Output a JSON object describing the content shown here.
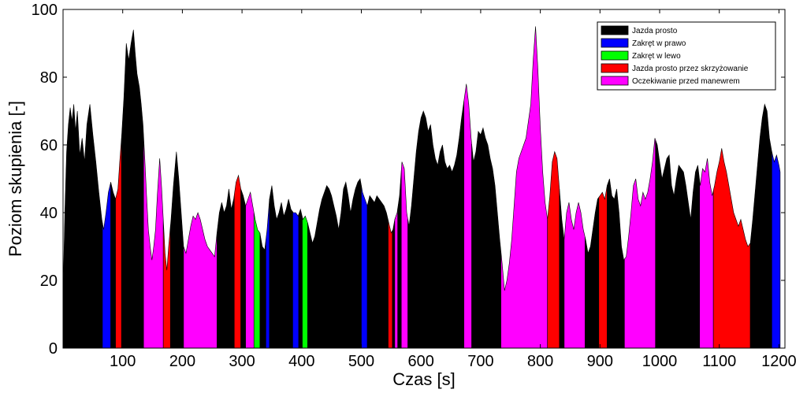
{
  "chart_data": {
    "type": "area",
    "xlabel": "Czas [s]",
    "ylabel": "Poziom skupienia [-]",
    "xlim": [
      0,
      1210
    ],
    "ylim": [
      0,
      100
    ],
    "xticks": [
      100,
      200,
      300,
      400,
      500,
      600,
      700,
      800,
      900,
      1000,
      1100,
      1200
    ],
    "yticks": [
      0,
      20,
      40,
      60,
      80,
      100
    ],
    "grid": false,
    "legend_position": "top-right",
    "legend": [
      {
        "name": "Jazda prosto",
        "color": "#000000"
      },
      {
        "name": "Zakręt w prawo",
        "color": "#0000ff"
      },
      {
        "name": "Zakręt w lewo",
        "color": "#00ff00"
      },
      {
        "name": "Jazda prosto przez skrzyżowanie",
        "color": "#ff0000"
      },
      {
        "name": "Oczekiwanie przed manewrem",
        "color": "#ff00ff"
      }
    ],
    "signal": [
      [
        0,
        15
      ],
      [
        3,
        40
      ],
      [
        6,
        58
      ],
      [
        9,
        66
      ],
      [
        12,
        71
      ],
      [
        15,
        67
      ],
      [
        18,
        72
      ],
      [
        21,
        64
      ],
      [
        24,
        70
      ],
      [
        28,
        57
      ],
      [
        32,
        62
      ],
      [
        36,
        55
      ],
      [
        40,
        66
      ],
      [
        45,
        72
      ],
      [
        50,
        63
      ],
      [
        55,
        55
      ],
      [
        60,
        46
      ],
      [
        65,
        38
      ],
      [
        68,
        35
      ],
      [
        72,
        40
      ],
      [
        76,
        46
      ],
      [
        80,
        49
      ],
      [
        84,
        46
      ],
      [
        88,
        44
      ],
      [
        92,
        47
      ],
      [
        95,
        55
      ],
      [
        98,
        62
      ],
      [
        102,
        74
      ],
      [
        106,
        90
      ],
      [
        110,
        85
      ],
      [
        114,
        90
      ],
      [
        118,
        94
      ],
      [
        121,
        87
      ],
      [
        124,
        81
      ],
      [
        128,
        77
      ],
      [
        131,
        72
      ],
      [
        134,
        66
      ],
      [
        137,
        56
      ],
      [
        140,
        45
      ],
      [
        143,
        35
      ],
      [
        146,
        30
      ],
      [
        149,
        26
      ],
      [
        152,
        30
      ],
      [
        155,
        35
      ],
      [
        158,
        45
      ],
      [
        162,
        56
      ],
      [
        165,
        48
      ],
      [
        168,
        38
      ],
      [
        171,
        28
      ],
      [
        174,
        23
      ],
      [
        177,
        30
      ],
      [
        181,
        38
      ],
      [
        185,
        48
      ],
      [
        190,
        58
      ],
      [
        194,
        50
      ],
      [
        198,
        40
      ],
      [
        202,
        30
      ],
      [
        206,
        28
      ],
      [
        210,
        32
      ],
      [
        214,
        36
      ],
      [
        218,
        39
      ],
      [
        222,
        38
      ],
      [
        226,
        40
      ],
      [
        230,
        38
      ],
      [
        234,
        35
      ],
      [
        238,
        32
      ],
      [
        242,
        30
      ],
      [
        246,
        29
      ],
      [
        250,
        28
      ],
      [
        254,
        27
      ],
      [
        258,
        34
      ],
      [
        262,
        40
      ],
      [
        266,
        43
      ],
      [
        270,
        40
      ],
      [
        274,
        42
      ],
      [
        278,
        47
      ],
      [
        282,
        41
      ],
      [
        286,
        44
      ],
      [
        290,
        49
      ],
      [
        294,
        51
      ],
      [
        298,
        47
      ],
      [
        302,
        45
      ],
      [
        306,
        42
      ],
      [
        310,
        44
      ],
      [
        314,
        46
      ],
      [
        318,
        42
      ],
      [
        322,
        38
      ],
      [
        326,
        35
      ],
      [
        330,
        34
      ],
      [
        334,
        30
      ],
      [
        338,
        29
      ],
      [
        342,
        35
      ],
      [
        346,
        44
      ],
      [
        350,
        48
      ],
      [
        354,
        42
      ],
      [
        358,
        38
      ],
      [
        362,
        40
      ],
      [
        366,
        43
      ],
      [
        370,
        39
      ],
      [
        374,
        41
      ],
      [
        378,
        44
      ],
      [
        382,
        41
      ],
      [
        386,
        40
      ],
      [
        390,
        40
      ],
      [
        394,
        39
      ],
      [
        398,
        41
      ],
      [
        402,
        38
      ],
      [
        406,
        39
      ],
      [
        410,
        37
      ],
      [
        414,
        34
      ],
      [
        418,
        31
      ],
      [
        422,
        33
      ],
      [
        426,
        37
      ],
      [
        430,
        41
      ],
      [
        434,
        44
      ],
      [
        438,
        46
      ],
      [
        442,
        48
      ],
      [
        446,
        47
      ],
      [
        450,
        45
      ],
      [
        454,
        42
      ],
      [
        458,
        39
      ],
      [
        462,
        35
      ],
      [
        466,
        40
      ],
      [
        470,
        47
      ],
      [
        474,
        49
      ],
      [
        478,
        45
      ],
      [
        482,
        40
      ],
      [
        486,
        44
      ],
      [
        490,
        47
      ],
      [
        494,
        49
      ],
      [
        498,
        50
      ],
      [
        502,
        46
      ],
      [
        506,
        44
      ],
      [
        510,
        42
      ],
      [
        514,
        45
      ],
      [
        518,
        44
      ],
      [
        522,
        43
      ],
      [
        526,
        45
      ],
      [
        530,
        44
      ],
      [
        534,
        43
      ],
      [
        538,
        42
      ],
      [
        542,
        40
      ],
      [
        546,
        37
      ],
      [
        550,
        34
      ],
      [
        553,
        35
      ],
      [
        556,
        38
      ],
      [
        560,
        40
      ],
      [
        564,
        45
      ],
      [
        568,
        55
      ],
      [
        572,
        53
      ],
      [
        576,
        40
      ],
      [
        580,
        36
      ],
      [
        584,
        42
      ],
      [
        588,
        50
      ],
      [
        592,
        58
      ],
      [
        596,
        64
      ],
      [
        600,
        68
      ],
      [
        604,
        70
      ],
      [
        608,
        68
      ],
      [
        612,
        64
      ],
      [
        616,
        66
      ],
      [
        620,
        60
      ],
      [
        624,
        56
      ],
      [
        628,
        54
      ],
      [
        632,
        58
      ],
      [
        636,
        60
      ],
      [
        640,
        55
      ],
      [
        644,
        53
      ],
      [
        648,
        54
      ],
      [
        652,
        52
      ],
      [
        656,
        54
      ],
      [
        660,
        57
      ],
      [
        664,
        62
      ],
      [
        668,
        68
      ],
      [
        672,
        73
      ],
      [
        676,
        78
      ],
      [
        680,
        72
      ],
      [
        684,
        62
      ],
      [
        688,
        55
      ],
      [
        692,
        58
      ],
      [
        696,
        64
      ],
      [
        700,
        63
      ],
      [
        704,
        65
      ],
      [
        708,
        62
      ],
      [
        712,
        60
      ],
      [
        716,
        56
      ],
      [
        720,
        53
      ],
      [
        724,
        48
      ],
      [
        728,
        40
      ],
      [
        732,
        32
      ],
      [
        736,
        25
      ],
      [
        740,
        17
      ],
      [
        744,
        20
      ],
      [
        748,
        25
      ],
      [
        752,
        32
      ],
      [
        756,
        42
      ],
      [
        760,
        52
      ],
      [
        764,
        56
      ],
      [
        768,
        58
      ],
      [
        772,
        60
      ],
      [
        776,
        62
      ],
      [
        780,
        67
      ],
      [
        784,
        72
      ],
      [
        788,
        85
      ],
      [
        792,
        95
      ],
      [
        796,
        82
      ],
      [
        800,
        65
      ],
      [
        804,
        52
      ],
      [
        808,
        43
      ],
      [
        812,
        38
      ],
      [
        816,
        45
      ],
      [
        820,
        55
      ],
      [
        824,
        58
      ],
      [
        828,
        56
      ],
      [
        832,
        47
      ],
      [
        836,
        38
      ],
      [
        840,
        32
      ],
      [
        844,
        40
      ],
      [
        848,
        43
      ],
      [
        852,
        38
      ],
      [
        856,
        35
      ],
      [
        860,
        40
      ],
      [
        864,
        43
      ],
      [
        868,
        40
      ],
      [
        872,
        35
      ],
      [
        876,
        32
      ],
      [
        880,
        28
      ],
      [
        884,
        30
      ],
      [
        888,
        35
      ],
      [
        892,
        40
      ],
      [
        896,
        44
      ],
      [
        900,
        45
      ],
      [
        904,
        46
      ],
      [
        908,
        44
      ],
      [
        912,
        48
      ],
      [
        916,
        50
      ],
      [
        920,
        45
      ],
      [
        924,
        44
      ],
      [
        928,
        47
      ],
      [
        932,
        40
      ],
      [
        936,
        30
      ],
      [
        940,
        26
      ],
      [
        944,
        27
      ],
      [
        948,
        33
      ],
      [
        952,
        40
      ],
      [
        956,
        48
      ],
      [
        960,
        50
      ],
      [
        964,
        44
      ],
      [
        968,
        42
      ],
      [
        972,
        46
      ],
      [
        976,
        44
      ],
      [
        980,
        46
      ],
      [
        984,
        50
      ],
      [
        988,
        55
      ],
      [
        992,
        62
      ],
      [
        996,
        60
      ],
      [
        1000,
        55
      ],
      [
        1004,
        50
      ],
      [
        1008,
        53
      ],
      [
        1012,
        56
      ],
      [
        1016,
        57
      ],
      [
        1020,
        48
      ],
      [
        1024,
        45
      ],
      [
        1028,
        50
      ],
      [
        1032,
        54
      ],
      [
        1036,
        53
      ],
      [
        1040,
        52
      ],
      [
        1044,
        48
      ],
      [
        1048,
        43
      ],
      [
        1052,
        38
      ],
      [
        1056,
        46
      ],
      [
        1060,
        52
      ],
      [
        1064,
        54
      ],
      [
        1068,
        48
      ],
      [
        1072,
        53
      ],
      [
        1076,
        52
      ],
      [
        1080,
        56
      ],
      [
        1084,
        49
      ],
      [
        1088,
        45
      ],
      [
        1092,
        48
      ],
      [
        1096,
        52
      ],
      [
        1100,
        55
      ],
      [
        1104,
        59
      ],
      [
        1108,
        55
      ],
      [
        1112,
        52
      ],
      [
        1116,
        48
      ],
      [
        1120,
        44
      ],
      [
        1124,
        40
      ],
      [
        1128,
        38
      ],
      [
        1132,
        36
      ],
      [
        1136,
        38
      ],
      [
        1140,
        35
      ],
      [
        1144,
        32
      ],
      [
        1148,
        30
      ],
      [
        1152,
        31
      ],
      [
        1156,
        38
      ],
      [
        1160,
        46
      ],
      [
        1164,
        54
      ],
      [
        1168,
        62
      ],
      [
        1172,
        68
      ],
      [
        1176,
        72
      ],
      [
        1180,
        70
      ],
      [
        1184,
        62
      ],
      [
        1188,
        58
      ],
      [
        1192,
        55
      ],
      [
        1196,
        57
      ],
      [
        1200,
        54
      ],
      [
        1202,
        52
      ]
    ],
    "segments": [
      {
        "label": "Jazda prosto",
        "x0": 0,
        "x1": 66
      },
      {
        "label": "Zakręt w prawo",
        "x0": 66,
        "x1": 80
      },
      {
        "label": "Jazda prosto",
        "x0": 80,
        "x1": 88
      },
      {
        "label": "Jazda prosto przez skrzyżowanie",
        "x0": 88,
        "x1": 98
      },
      {
        "label": "Jazda prosto",
        "x0": 98,
        "x1": 135
      },
      {
        "label": "Oczekiwanie przed manewrem",
        "x0": 135,
        "x1": 168
      },
      {
        "label": "Jazda prosto przez skrzyżowanie",
        "x0": 168,
        "x1": 180
      },
      {
        "label": "Jazda prosto",
        "x0": 180,
        "x1": 202
      },
      {
        "label": "Oczekiwanie przed manewrem",
        "x0": 202,
        "x1": 258
      },
      {
        "label": "Jazda prosto",
        "x0": 258,
        "x1": 287
      },
      {
        "label": "Jazda prosto przez skrzyżowanie",
        "x0": 287,
        "x1": 298
      },
      {
        "label": "Jazda prosto",
        "x0": 298,
        "x1": 306
      },
      {
        "label": "Oczekiwanie przed manewrem",
        "x0": 306,
        "x1": 320
      },
      {
        "label": "Zakręt w lewo",
        "x0": 320,
        "x1": 330
      },
      {
        "label": "Jazda prosto",
        "x0": 330,
        "x1": 340
      },
      {
        "label": "Zakręt w prawo",
        "x0": 340,
        "x1": 346
      },
      {
        "label": "Jazda prosto",
        "x0": 346,
        "x1": 385
      },
      {
        "label": "Zakręt w prawo",
        "x0": 385,
        "x1": 395
      },
      {
        "label": "Jazda prosto",
        "x0": 395,
        "x1": 401
      },
      {
        "label": "Zakręt w lewo",
        "x0": 401,
        "x1": 410
      },
      {
        "label": "Jazda prosto",
        "x0": 410,
        "x1": 500
      },
      {
        "label": "Zakręt w prawo",
        "x0": 500,
        "x1": 510
      },
      {
        "label": "Jazda prosto",
        "x0": 510,
        "x1": 545
      },
      {
        "label": "Jazda prosto przez skrzyżowanie",
        "x0": 545,
        "x1": 552
      },
      {
        "label": "Jazda prosto",
        "x0": 552,
        "x1": 556
      },
      {
        "label": "Oczekiwanie przed manewrem",
        "x0": 556,
        "x1": 561
      },
      {
        "label": "Jazda prosto",
        "x0": 561,
        "x1": 567
      },
      {
        "label": "Oczekiwanie przed manewrem",
        "x0": 567,
        "x1": 578
      },
      {
        "label": "Jazda prosto",
        "x0": 578,
        "x1": 672
      },
      {
        "label": "Oczekiwanie przed manewrem",
        "x0": 672,
        "x1": 685
      },
      {
        "label": "Jazda prosto",
        "x0": 685,
        "x1": 734
      },
      {
        "label": "Oczekiwanie przed manewrem",
        "x0": 734,
        "x1": 812
      },
      {
        "label": "Jazda prosto przez skrzyżowanie",
        "x0": 812,
        "x1": 832
      },
      {
        "label": "Jazda prosto",
        "x0": 832,
        "x1": 840
      },
      {
        "label": "Oczekiwanie przed manewrem",
        "x0": 840,
        "x1": 875
      },
      {
        "label": "Jazda prosto",
        "x0": 875,
        "x1": 898
      },
      {
        "label": "Jazda prosto przez skrzyżowanie",
        "x0": 898,
        "x1": 912
      },
      {
        "label": "Jazda prosto",
        "x0": 912,
        "x1": 941
      },
      {
        "label": "Oczekiwanie przed manewrem",
        "x0": 941,
        "x1": 993
      },
      {
        "label": "Jazda prosto",
        "x0": 993,
        "x1": 1067
      },
      {
        "label": "Oczekiwanie przed manewrem",
        "x0": 1067,
        "x1": 1090
      },
      {
        "label": "Jazda prosto przez skrzyżowanie",
        "x0": 1090,
        "x1": 1152
      },
      {
        "label": "Jazda prosto",
        "x0": 1152,
        "x1": 1188
      },
      {
        "label": "Zakręt w prawo",
        "x0": 1188,
        "x1": 1202
      }
    ]
  }
}
